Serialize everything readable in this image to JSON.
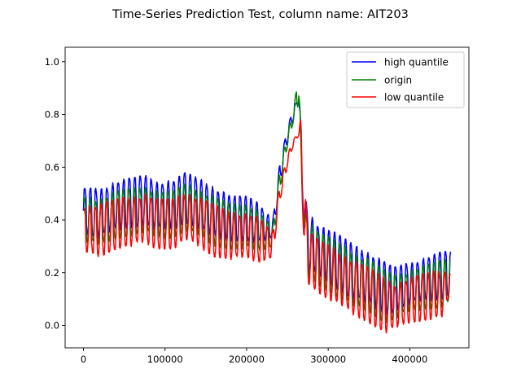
{
  "chart_data": {
    "type": "line",
    "title": "Time-Series Prediction Test, column name: AIT203",
    "xlabel": "",
    "ylabel": "",
    "xlim": [
      -22500,
      472500
    ],
    "ylim": [
      -0.085,
      1.055
    ],
    "xticks": [
      0,
      100000,
      200000,
      300000,
      400000
    ],
    "xtick_labels": [
      "0",
      "100000",
      "200000",
      "300000",
      "400000"
    ],
    "yticks": [
      0.0,
      0.2,
      0.4,
      0.6,
      0.8,
      1.0
    ],
    "ytick_labels": [
      "0.0",
      "0.2",
      "0.4",
      "0.6",
      "0.8",
      "1.0"
    ],
    "grid": false,
    "legend_position": "top-right",
    "oscillating_signal": true,
    "series": [
      {
        "name": "high quantile",
        "color": "#0000ff",
        "upper_envelope": [
          [
            0,
            0.52
          ],
          [
            20000,
            0.52
          ],
          [
            40000,
            0.55
          ],
          [
            60000,
            0.56
          ],
          [
            75000,
            0.57
          ],
          [
            90000,
            0.55
          ],
          [
            110000,
            0.55
          ],
          [
            125000,
            0.58
          ],
          [
            140000,
            0.56
          ],
          [
            160000,
            0.53
          ],
          [
            180000,
            0.49
          ],
          [
            200000,
            0.49
          ],
          [
            215000,
            0.47
          ],
          [
            232000,
            0.4
          ],
          [
            240000,
            0.6
          ],
          [
            250000,
            0.75
          ],
          [
            258000,
            0.83
          ],
          [
            264000,
            0.86
          ],
          [
            266000,
            0.8
          ],
          [
            268000,
            0.55
          ],
          [
            275000,
            0.44
          ],
          [
            290000,
            0.38
          ],
          [
            310000,
            0.35
          ],
          [
            330000,
            0.31
          ],
          [
            350000,
            0.28
          ],
          [
            370000,
            0.24
          ],
          [
            380000,
            0.22
          ],
          [
            400000,
            0.24
          ],
          [
            420000,
            0.26
          ],
          [
            440000,
            0.28
          ],
          [
            450000,
            0.28
          ]
        ],
        "lower_envelope": [
          [
            0,
            0.35
          ],
          [
            20000,
            0.33
          ],
          [
            40000,
            0.36
          ],
          [
            60000,
            0.37
          ],
          [
            75000,
            0.38
          ],
          [
            90000,
            0.36
          ],
          [
            110000,
            0.36
          ],
          [
            125000,
            0.39
          ],
          [
            140000,
            0.37
          ],
          [
            160000,
            0.33
          ],
          [
            180000,
            0.32
          ],
          [
            200000,
            0.32
          ],
          [
            215000,
            0.31
          ],
          [
            232000,
            0.33
          ],
          [
            240000,
            0.52
          ],
          [
            250000,
            0.7
          ],
          [
            258000,
            0.79
          ],
          [
            264000,
            0.85
          ],
          [
            266000,
            0.78
          ],
          [
            268000,
            0.5
          ],
          [
            275000,
            0.2
          ],
          [
            290000,
            0.18
          ],
          [
            310000,
            0.14
          ],
          [
            330000,
            0.1
          ],
          [
            350000,
            0.08
          ],
          [
            370000,
            0.04
          ],
          [
            380000,
            0.05
          ],
          [
            400000,
            0.08
          ],
          [
            420000,
            0.09
          ],
          [
            440000,
            0.1
          ],
          [
            450000,
            0.12
          ]
        ]
      },
      {
        "name": "origin",
        "color": "#008000",
        "upper_envelope": [
          [
            0,
            0.49
          ],
          [
            20000,
            0.48
          ],
          [
            40000,
            0.51
          ],
          [
            60000,
            0.52
          ],
          [
            75000,
            0.53
          ],
          [
            90000,
            0.51
          ],
          [
            110000,
            0.51
          ],
          [
            125000,
            0.54
          ],
          [
            140000,
            0.52
          ],
          [
            160000,
            0.49
          ],
          [
            180000,
            0.46
          ],
          [
            200000,
            0.46
          ],
          [
            215000,
            0.44
          ],
          [
            232000,
            0.37
          ],
          [
            240000,
            0.57
          ],
          [
            250000,
            0.73
          ],
          [
            258000,
            0.82
          ],
          [
            264000,
            1.0
          ],
          [
            266000,
            0.77
          ],
          [
            268000,
            0.52
          ],
          [
            275000,
            0.4
          ],
          [
            290000,
            0.35
          ],
          [
            310000,
            0.32
          ],
          [
            330000,
            0.28
          ],
          [
            350000,
            0.25
          ],
          [
            370000,
            0.21
          ],
          [
            380000,
            0.19
          ],
          [
            400000,
            0.21
          ],
          [
            420000,
            0.23
          ],
          [
            440000,
            0.25
          ],
          [
            450000,
            0.25
          ]
        ],
        "lower_envelope": [
          [
            0,
            0.32
          ],
          [
            20000,
            0.3
          ],
          [
            40000,
            0.33
          ],
          [
            60000,
            0.34
          ],
          [
            75000,
            0.35
          ],
          [
            90000,
            0.33
          ],
          [
            110000,
            0.33
          ],
          [
            125000,
            0.36
          ],
          [
            140000,
            0.34
          ],
          [
            160000,
            0.3
          ],
          [
            180000,
            0.29
          ],
          [
            200000,
            0.29
          ],
          [
            215000,
            0.28
          ],
          [
            232000,
            0.3
          ],
          [
            240000,
            0.5
          ],
          [
            250000,
            0.68
          ],
          [
            258000,
            0.78
          ],
          [
            264000,
            0.84
          ],
          [
            266000,
            0.74
          ],
          [
            268000,
            0.47
          ],
          [
            275000,
            0.18
          ],
          [
            290000,
            0.15
          ],
          [
            310000,
            0.11
          ],
          [
            330000,
            0.07
          ],
          [
            350000,
            0.05
          ],
          [
            370000,
            0.01
          ],
          [
            380000,
            0.02
          ],
          [
            400000,
            0.05
          ],
          [
            420000,
            0.06
          ],
          [
            440000,
            0.07
          ],
          [
            450000,
            0.09
          ]
        ]
      },
      {
        "name": "low quantile",
        "color": "#ff0000",
        "upper_envelope": [
          [
            0,
            0.46
          ],
          [
            20000,
            0.46
          ],
          [
            40000,
            0.48
          ],
          [
            60000,
            0.49
          ],
          [
            75000,
            0.5
          ],
          [
            90000,
            0.48
          ],
          [
            110000,
            0.48
          ],
          [
            125000,
            0.51
          ],
          [
            140000,
            0.49
          ],
          [
            160000,
            0.46
          ],
          [
            180000,
            0.43
          ],
          [
            200000,
            0.43
          ],
          [
            215000,
            0.41
          ],
          [
            232000,
            0.35
          ],
          [
            240000,
            0.52
          ],
          [
            250000,
            0.65
          ],
          [
            258000,
            0.71
          ],
          [
            264000,
            0.73
          ],
          [
            266000,
            0.79
          ],
          [
            268000,
            0.7
          ],
          [
            275000,
            0.36
          ],
          [
            290000,
            0.32
          ],
          [
            310000,
            0.29
          ],
          [
            330000,
            0.25
          ],
          [
            350000,
            0.22
          ],
          [
            370000,
            0.18
          ],
          [
            380000,
            0.16
          ],
          [
            400000,
            0.18
          ],
          [
            420000,
            0.2
          ],
          [
            440000,
            0.21
          ],
          [
            450000,
            0.2
          ]
        ],
        "lower_envelope": [
          [
            0,
            0.27
          ],
          [
            20000,
            0.26
          ],
          [
            40000,
            0.29
          ],
          [
            60000,
            0.3
          ],
          [
            75000,
            0.31
          ],
          [
            90000,
            0.29
          ],
          [
            110000,
            0.29
          ],
          [
            125000,
            0.32
          ],
          [
            140000,
            0.3
          ],
          [
            160000,
            0.26
          ],
          [
            180000,
            0.25
          ],
          [
            200000,
            0.25
          ],
          [
            215000,
            0.24
          ],
          [
            232000,
            0.26
          ],
          [
            240000,
            0.46
          ],
          [
            250000,
            0.6
          ],
          [
            258000,
            0.69
          ],
          [
            264000,
            0.72
          ],
          [
            266000,
            0.74
          ],
          [
            268000,
            0.42
          ],
          [
            275000,
            0.16
          ],
          [
            290000,
            0.12
          ],
          [
            310000,
            0.08
          ],
          [
            330000,
            0.04
          ],
          [
            350000,
            0.01
          ],
          [
            370000,
            -0.03
          ],
          [
            380000,
            -0.02
          ],
          [
            400000,
            0.01
          ],
          [
            420000,
            0.02
          ],
          [
            440000,
            0.03
          ],
          [
            450000,
            0.12
          ]
        ]
      }
    ]
  }
}
